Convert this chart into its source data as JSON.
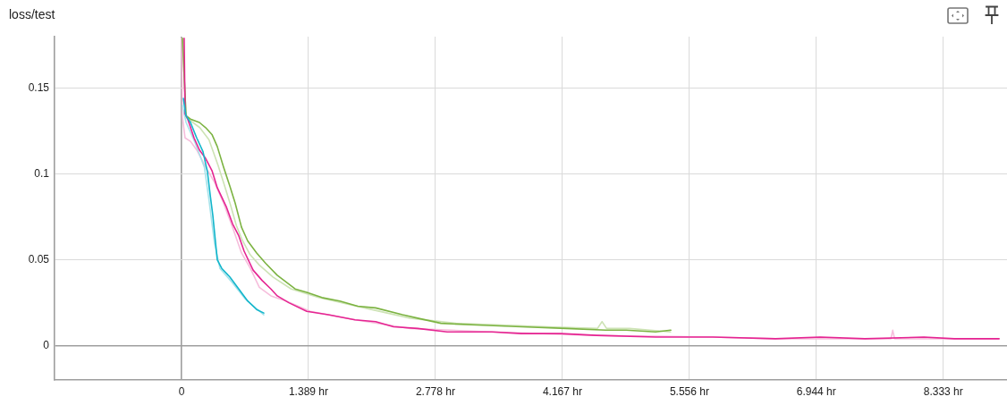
{
  "chart_data": {
    "type": "line",
    "title": "loss/test",
    "xlim": [
      -1.389,
      9.03
    ],
    "xticks": [
      0,
      {
        "value": 1.389,
        "label": "1.389 hr"
      },
      {
        "value": 2.778,
        "label": "2.778 hr"
      },
      {
        "value": 4.167,
        "label": "4.167 hr"
      },
      {
        "value": 5.556,
        "label": "5.556 hr"
      },
      {
        "value": 6.944,
        "label": "6.944 hr"
      },
      {
        "value": 8.333,
        "label": "8.333 hr"
      }
    ],
    "ylim": [
      -0.02,
      0.18
    ],
    "yticks": [
      0,
      0.05,
      0.1,
      0.15
    ],
    "grid": true,
    "legend": false,
    "marker": "none",
    "line_style": "solid",
    "series": [
      {
        "color": "#cde3b5",
        "x": [
          0.01,
          0.05,
          0.2,
          0.3,
          0.4,
          0.46,
          0.53,
          0.6,
          0.66,
          0.75,
          0.85,
          1.0,
          1.2,
          1.5,
          2.0,
          2.5,
          3.0,
          3.5,
          4.0,
          4.55,
          4.6,
          4.65,
          4.9,
          5.35
        ],
        "values": [
          0.179,
          0.133,
          0.127,
          0.12,
          0.105,
          0.095,
          0.083,
          0.07,
          0.062,
          0.053,
          0.047,
          0.04,
          0.033,
          0.028,
          0.022,
          0.016,
          0.013,
          0.012,
          0.011,
          0.01,
          0.014,
          0.01,
          0.01,
          0.008
        ]
      },
      {
        "color": "#f6bedc",
        "x": [
          0.0,
          0.01,
          0.039,
          0.098,
          0.166,
          0.264,
          0.362,
          0.46,
          0.558,
          0.656,
          0.753,
          0.851,
          0.978,
          1.145,
          1.409,
          1.9,
          2.5,
          3.4,
          4.5,
          5.8,
          6.5,
          7.5,
          7.76,
          7.78,
          7.8,
          8.4,
          8.943
        ],
        "values": [
          0.179,
          0.133,
          0.121,
          0.119,
          0.114,
          0.104,
          0.095,
          0.083,
          0.069,
          0.054,
          0.045,
          0.034,
          0.029,
          0.026,
          0.02,
          0.015,
          0.01,
          0.008,
          0.006,
          0.005,
          0.004,
          0.004,
          0.004,
          0.009,
          0.004,
          0.004,
          0.004
        ]
      },
      {
        "color": "#a6e3eb",
        "x": [
          0.01,
          0.05,
          0.15,
          0.25,
          0.3,
          0.36,
          0.42,
          0.55,
          0.7,
          0.9
        ],
        "values": [
          0.14,
          0.13,
          0.118,
          0.104,
          0.085,
          0.06,
          0.045,
          0.037,
          0.027,
          0.018
        ]
      },
      {
        "color": "#7cb342",
        "x": [
          0.01,
          0.049,
          0.098,
          0.196,
          0.264,
          0.333,
          0.391,
          0.46,
          0.528,
          0.587,
          0.656,
          0.724,
          0.822,
          0.92,
          1.047,
          1.243,
          1.37,
          1.536,
          1.732,
          1.928,
          2.123,
          2.417,
          2.583,
          2.838,
          3.229,
          3.718,
          4.207,
          4.638,
          4.863,
          5.186,
          5.352
        ],
        "values": [
          0.179,
          0.134,
          0.132,
          0.13,
          0.127,
          0.123,
          0.116,
          0.104,
          0.093,
          0.083,
          0.069,
          0.061,
          0.054,
          0.048,
          0.041,
          0.033,
          0.031,
          0.028,
          0.026,
          0.023,
          0.022,
          0.018,
          0.016,
          0.013,
          0.012,
          0.011,
          0.01,
          0.009,
          0.009,
          0.008,
          0.009
        ]
      },
      {
        "color": "#e52592",
        "x": [
          0.029,
          0.039,
          0.068,
          0.137,
          0.196,
          0.264,
          0.333,
          0.391,
          0.489,
          0.558,
          0.626,
          0.685,
          0.783,
          0.881,
          0.978,
          1.047,
          1.174,
          1.37,
          1.605,
          1.898,
          2.123,
          2.319,
          2.583,
          2.906,
          3.395,
          3.718,
          4.149,
          4.54,
          5.186,
          5.519,
          5.812,
          6.497,
          6.986,
          7.476,
          8.121,
          8.454,
          8.943
        ],
        "values": [
          0.179,
          0.135,
          0.132,
          0.121,
          0.114,
          0.109,
          0.102,
          0.092,
          0.081,
          0.071,
          0.064,
          0.055,
          0.044,
          0.038,
          0.033,
          0.029,
          0.025,
          0.02,
          0.018,
          0.015,
          0.014,
          0.011,
          0.01,
          0.008,
          0.008,
          0.007,
          0.007,
          0.006,
          0.005,
          0.005,
          0.005,
          0.004,
          0.005,
          0.004,
          0.005,
          0.004,
          0.004
        ]
      },
      {
        "color": "#12b5cb",
        "x": [
          0.02,
          0.049,
          0.098,
          0.166,
          0.235,
          0.284,
          0.313,
          0.342,
          0.391,
          0.44,
          0.528,
          0.626,
          0.724,
          0.822,
          0.9
        ],
        "values": [
          0.144,
          0.134,
          0.13,
          0.121,
          0.113,
          0.101,
          0.088,
          0.076,
          0.05,
          0.045,
          0.04,
          0.033,
          0.026,
          0.021,
          0.019
        ]
      }
    ]
  }
}
